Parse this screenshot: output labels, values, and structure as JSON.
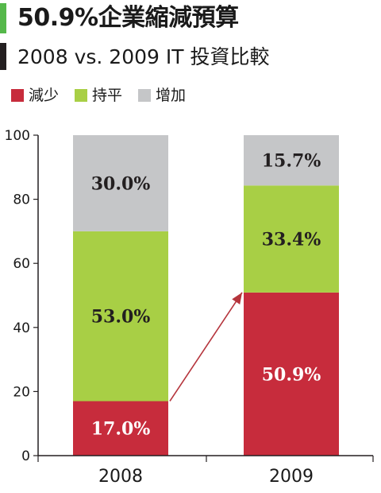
{
  "header": {
    "title": "50.9%企業縮減預算",
    "subtitle": "2008 vs. 2009 IT 投資比較"
  },
  "colors": {
    "decrease": "#c72c3c",
    "flat": "#a8cf45",
    "increase": "#c5c6c8",
    "title_accent": "#55b84a",
    "subtitle_accent": "#231f20",
    "arrow": "#b5343c"
  },
  "chart_data": {
    "type": "bar",
    "stacked": true,
    "categories": [
      "2008",
      "2009"
    ],
    "series": [
      {
        "name": "減少",
        "values": [
          17.0,
          50.9
        ],
        "labels": [
          "17.0%",
          "50.9%"
        ]
      },
      {
        "name": "持平",
        "values": [
          53.0,
          33.4
        ],
        "labels": [
          "53.0%",
          "33.4%"
        ]
      },
      {
        "name": "增加",
        "values": [
          30.0,
          15.7
        ],
        "labels": [
          "30.0%",
          "15.7%"
        ]
      }
    ],
    "ylim": [
      0,
      100
    ],
    "yticks": [
      "0",
      "20",
      "40",
      "60",
      "80",
      "100"
    ],
    "legend_position": "top-left",
    "grid": false,
    "annotation": "arrow from top of 2008 減少 to top of 2009 減少"
  }
}
